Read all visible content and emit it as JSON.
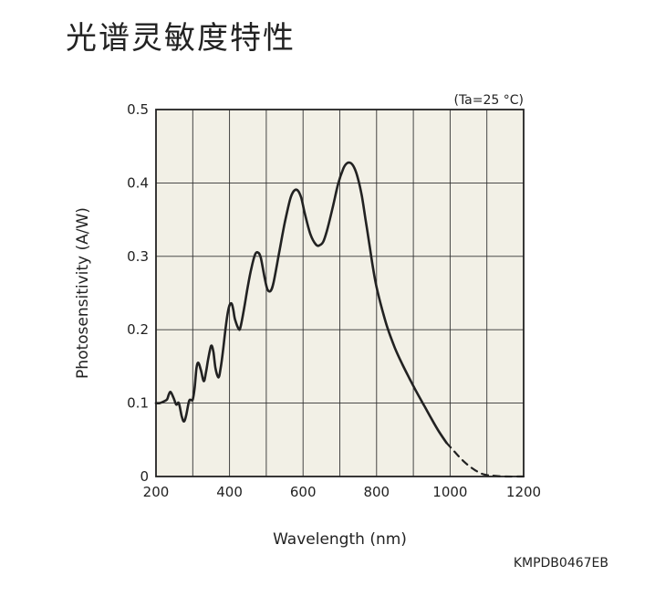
{
  "chart_data": {
    "type": "line",
    "title": "光谱灵敏度特性",
    "condition_note": "(Ta=25 °C)",
    "xlabel": "Wavelength (nm)",
    "ylabel": "Photosensitivity (A/W)",
    "xlim": [
      200,
      1200
    ],
    "ylim": [
      0,
      0.5
    ],
    "x_ticks": [
      200,
      400,
      600,
      800,
      1000,
      1200
    ],
    "x_tick_labels": [
      "200",
      "400",
      "600",
      "800",
      "1000",
      "1200"
    ],
    "y_ticks": [
      0,
      0.1,
      0.2,
      0.3,
      0.4,
      0.5
    ],
    "y_tick_labels": [
      "0",
      "0.1",
      "0.2",
      "0.3",
      "0.4",
      "0.5"
    ],
    "grid": true,
    "background_color": "#f2f0e6",
    "line_color": "#222222",
    "figure_code": "KMPDB0467EB",
    "series": [
      {
        "style": "solid",
        "x": [
          200,
          210,
          220,
          230,
          235,
          240,
          248,
          255,
          262,
          270,
          276,
          282,
          290,
          296,
          300,
          305,
          310,
          315,
          322,
          330,
          336,
          342,
          350,
          356,
          362,
          370,
          376,
          382,
          390,
          398,
          405,
          410,
          415,
          425,
          430,
          440,
          450,
          460,
          470,
          478,
          485,
          495,
          503,
          512,
          520,
          535,
          550,
          565,
          575,
          585,
          595,
          605,
          620,
          635,
          645,
          655,
          665,
          680,
          695,
          710,
          720,
          730,
          740,
          750,
          760,
          770,
          780,
          790,
          800,
          815,
          830,
          850,
          870,
          890,
          910,
          930,
          950,
          970,
          990
        ],
        "y": [
          0.1,
          0.1,
          0.102,
          0.105,
          0.112,
          0.115,
          0.107,
          0.098,
          0.1,
          0.082,
          0.075,
          0.083,
          0.103,
          0.104,
          0.105,
          0.12,
          0.147,
          0.155,
          0.145,
          0.13,
          0.142,
          0.16,
          0.178,
          0.17,
          0.147,
          0.135,
          0.148,
          0.17,
          0.205,
          0.23,
          0.236,
          0.228,
          0.214,
          0.201,
          0.204,
          0.23,
          0.26,
          0.285,
          0.303,
          0.305,
          0.298,
          0.272,
          0.255,
          0.253,
          0.265,
          0.305,
          0.345,
          0.378,
          0.389,
          0.39,
          0.38,
          0.358,
          0.33,
          0.316,
          0.315,
          0.32,
          0.335,
          0.365,
          0.398,
          0.42,
          0.427,
          0.427,
          0.42,
          0.405,
          0.382,
          0.35,
          0.318,
          0.285,
          0.258,
          0.228,
          0.202,
          0.175,
          0.153,
          0.133,
          0.114,
          0.096,
          0.078,
          0.061,
          0.046
        ]
      },
      {
        "style": "dashed",
        "x": [
          990,
          1010,
          1030,
          1050,
          1070,
          1085,
          1100,
          1120,
          1150,
          1200
        ],
        "y": [
          0.046,
          0.035,
          0.024,
          0.015,
          0.008,
          0.004,
          0.002,
          0.001,
          0.0,
          0.0
        ]
      }
    ]
  }
}
